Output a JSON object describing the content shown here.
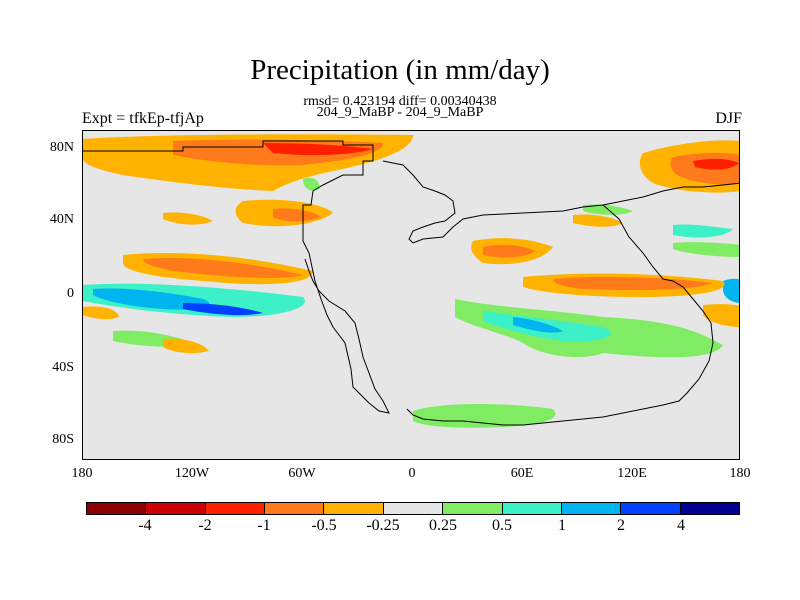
{
  "title": "Precipitation (in mm/day)",
  "stats_line": "rmsd= 0.423194 diff= 0.00340438",
  "period_line": "204_9_MaBP - 204_9_MaBP",
  "left_label": "Expt = tfkEp-tfjAp",
  "right_label": "DJF",
  "lat_ticks": [
    "80N",
    "40N",
    "0",
    "40S",
    "80S"
  ],
  "lon_ticks": [
    "180",
    "120W",
    "60W",
    "0",
    "60E",
    "120E",
    "180"
  ],
  "colorbar": {
    "colors": [
      "#8b0000",
      "#cc0000",
      "#ff2000",
      "#ff7a1a",
      "#ffb300",
      "#e6e6e6",
      "#80ec64",
      "#3cf0c8",
      "#00b4f0",
      "#0040ff",
      "#000090"
    ],
    "labels": [
      "-4",
      "-2",
      "-1",
      "-0.5",
      "-0.25",
      "0.25",
      "0.5",
      "1",
      "2",
      "4"
    ]
  },
  "chart_data": {
    "type": "heatmap",
    "title": "Precipitation (in mm/day)",
    "variable": "precipitation difference",
    "units": "mm/day",
    "season": "DJF",
    "experiment": "tfkEp-tfjAp",
    "rmsd": 0.423194,
    "diff": 0.00340438,
    "lon_range": [
      -180,
      180
    ],
    "lat_range": [
      -90,
      90
    ],
    "contour_levels": [
      -4,
      -2,
      -1,
      -0.5,
      -0.25,
      0.25,
      0.5,
      1,
      2,
      4
    ]
  }
}
